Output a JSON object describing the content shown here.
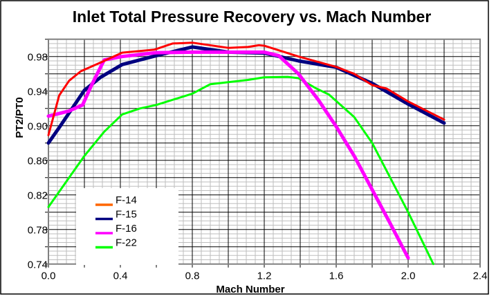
{
  "chart_data": {
    "type": "line",
    "title": "Inlet Total Pressure Recovery vs. Mach Number",
    "xlabel": "Mach Number",
    "ylabel": "PT2/PT0",
    "xlim": [
      0.0,
      2.4
    ],
    "ylim": [
      0.74,
      1.0
    ],
    "x_ticks": [
      "0.0",
      "0.4",
      "0.8",
      "1.2",
      "1.6",
      "2.0",
      "2.4"
    ],
    "y_ticks": [
      "0.74",
      "0.78",
      "0.82",
      "0.86",
      "0.90",
      "0.94",
      "0.98"
    ],
    "grid": true,
    "legend_position": "bottom-left",
    "series": [
      {
        "name": "F-14",
        "color": "#ff0000",
        "legend_color": "#ff6600",
        "x": [
          0,
          0.06,
          0.115,
          0.18,
          0.29,
          0.41,
          0.59,
          0.69,
          0.8,
          1.0,
          1.11,
          1.17,
          1.2,
          1.39,
          1.6,
          1.7,
          1.8,
          1.88,
          2.0,
          2.2
        ],
        "y": [
          0.889,
          0.935,
          0.952,
          0.963,
          0.973,
          0.9845,
          0.988,
          0.995,
          0.996,
          0.99,
          0.991,
          0.993,
          0.9925,
          0.98,
          0.968,
          0.96,
          0.947,
          0.943,
          0.928,
          0.907
        ]
      },
      {
        "name": "F-15",
        "color": "#000080",
        "legend_color": "#000080",
        "x": [
          0,
          0.064,
          0.2,
          0.29,
          0.41,
          0.6,
          0.8,
          1.0,
          1.2,
          1.39,
          1.6,
          1.8,
          2.0,
          2.2
        ],
        "y": [
          0.88,
          0.899,
          0.941,
          0.956,
          0.9707,
          0.981,
          0.991,
          0.985,
          0.984,
          0.975,
          0.9675,
          0.949,
          0.925,
          0.903
        ]
      },
      {
        "name": "F-16",
        "color": "#ff00ff",
        "legend_color": "#ff00ff",
        "x": [
          0,
          0.115,
          0.19,
          0.24,
          0.31,
          0.41,
          0.6,
          0.8,
          1.0,
          1.2,
          1.28,
          1.39,
          1.5,
          1.6,
          1.7,
          1.8,
          1.9,
          2.0
        ],
        "y": [
          0.911,
          0.917,
          0.924,
          0.947,
          0.976,
          0.98,
          0.9845,
          0.985,
          0.985,
          0.985,
          0.981,
          0.96,
          0.93,
          0.899,
          0.865,
          0.826,
          0.787,
          0.747
        ]
      },
      {
        "name": "F-22",
        "color": "#00ff00",
        "legend_color": "#00ff00",
        "x": [
          0,
          0.115,
          0.2,
          0.31,
          0.41,
          0.51,
          0.6,
          0.8,
          0.9,
          1.11,
          1.2,
          1.33,
          1.39,
          1.49,
          1.56,
          1.7,
          1.8,
          1.9,
          2.0,
          2.14
        ],
        "y": [
          0.806,
          0.84,
          0.865,
          0.893,
          0.913,
          0.92,
          0.924,
          0.937,
          0.948,
          0.953,
          0.956,
          0.9565,
          0.955,
          0.943,
          0.936,
          0.91,
          0.88,
          0.84,
          0.8,
          0.74
        ]
      }
    ]
  }
}
